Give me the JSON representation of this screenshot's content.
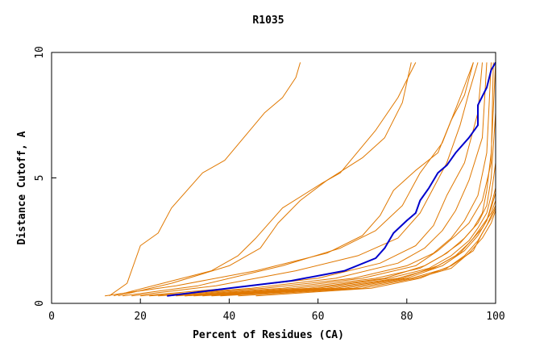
{
  "chart_data": {
    "type": "line",
    "title": "R1035",
    "xlabel": "Percent of Residues (CA)",
    "ylabel": "Distance Cutoff, A",
    "xlim": [
      0,
      100
    ],
    "ylim": [
      0,
      10
    ],
    "x_ticks": [
      "0",
      "20",
      "40",
      "60",
      "80",
      "100"
    ],
    "y_ticks": [
      "0",
      "5",
      "10"
    ],
    "grid": false,
    "legend": "none",
    "colors": {
      "highlight": "#0000cc",
      "others": "#e07800",
      "axis": "#000000"
    },
    "series": [
      {
        "values": [
          [
            13,
            0.3
          ],
          [
            17,
            0.8
          ],
          [
            20,
            2.3
          ],
          [
            24,
            2.8
          ],
          [
            27,
            3.8
          ],
          [
            34,
            5.2
          ],
          [
            39,
            5.7
          ],
          [
            48,
            7.6
          ],
          [
            52,
            8.2
          ],
          [
            55,
            9.0
          ],
          [
            56,
            9.6
          ]
        ]
      },
      {
        "values": [
          [
            14,
            0.3
          ],
          [
            25,
            0.8
          ],
          [
            36,
            1.3
          ],
          [
            42,
            1.9
          ],
          [
            46,
            2.6
          ],
          [
            52,
            3.8
          ],
          [
            61,
            4.8
          ],
          [
            65,
            5.2
          ],
          [
            73,
            6.9
          ],
          [
            78,
            8.2
          ],
          [
            82,
            9.6
          ]
        ]
      },
      {
        "values": [
          [
            15,
            0.3
          ],
          [
            27,
            0.8
          ],
          [
            40,
            1.5
          ],
          [
            47,
            2.2
          ],
          [
            51,
            3.2
          ],
          [
            56,
            4.1
          ],
          [
            62,
            4.9
          ],
          [
            70,
            5.8
          ],
          [
            75,
            6.6
          ],
          [
            79,
            8.0
          ],
          [
            81,
            9.6
          ]
        ]
      },
      {
        "values": [
          [
            12,
            0.3
          ],
          [
            28,
            0.7
          ],
          [
            46,
            1.3
          ],
          [
            62,
            2.0
          ],
          [
            70,
            2.7
          ],
          [
            74,
            3.5
          ],
          [
            77,
            4.5
          ],
          [
            82,
            5.3
          ],
          [
            87,
            6.0
          ],
          [
            90,
            7.3
          ],
          [
            93,
            8.3
          ],
          [
            95,
            9.6
          ]
        ]
      },
      {
        "values": [
          [
            16,
            0.3
          ],
          [
            33,
            0.7
          ],
          [
            52,
            1.5
          ],
          [
            65,
            2.2
          ],
          [
            73,
            2.9
          ],
          [
            79,
            3.9
          ],
          [
            83,
            5.2
          ],
          [
            88,
            6.4
          ],
          [
            92,
            8.2
          ],
          [
            95,
            9.6
          ]
        ]
      },
      {
        "values": [
          [
            18,
            0.3
          ],
          [
            37,
            0.7
          ],
          [
            55,
            1.3
          ],
          [
            69,
            1.9
          ],
          [
            78,
            2.6
          ],
          [
            83,
            3.6
          ],
          [
            86,
            4.6
          ],
          [
            89,
            5.6
          ],
          [
            92,
            7.1
          ],
          [
            94,
            8.4
          ],
          [
            96,
            9.6
          ]
        ]
      },
      {
        "values": [
          [
            20,
            0.3
          ],
          [
            40,
            0.6
          ],
          [
            60,
            1.0
          ],
          [
            74,
            1.6
          ],
          [
            82,
            2.3
          ],
          [
            86,
            3.1
          ],
          [
            89,
            4.3
          ],
          [
            93,
            5.6
          ],
          [
            96,
            7.6
          ],
          [
            97,
            9.6
          ]
        ]
      },
      {
        "values": [
          [
            22,
            0.3
          ],
          [
            45,
            0.6
          ],
          [
            64,
            1.0
          ],
          [
            78,
            1.6
          ],
          [
            84,
            2.2
          ],
          [
            88,
            2.9
          ],
          [
            91,
            3.7
          ],
          [
            94,
            4.9
          ],
          [
            97,
            6.6
          ],
          [
            98,
            9.6
          ]
        ]
      },
      {
        "values": [
          [
            24,
            0.3
          ],
          [
            48,
            0.6
          ],
          [
            68,
            1.0
          ],
          [
            80,
            1.5
          ],
          [
            86,
            2.0
          ],
          [
            90,
            2.6
          ],
          [
            93,
            3.3
          ],
          [
            96,
            4.3
          ],
          [
            98,
            6.0
          ],
          [
            99,
            9.6
          ]
        ]
      },
      {
        "values": [
          [
            26,
            0.3
          ],
          [
            52,
            0.6
          ],
          [
            70,
            1.0
          ],
          [
            82,
            1.5
          ],
          [
            87,
            2.1
          ],
          [
            91,
            2.7
          ],
          [
            94,
            3.2
          ],
          [
            97,
            4.1
          ],
          [
            99,
            5.6
          ],
          [
            99.5,
            9.6
          ]
        ]
      },
      {
        "values": [
          [
            28,
            0.3
          ],
          [
            55,
            0.6
          ],
          [
            73,
            1.0
          ],
          [
            83,
            1.4
          ],
          [
            88,
            1.9
          ],
          [
            92,
            2.4
          ],
          [
            95,
            3.0
          ],
          [
            97,
            3.6
          ],
          [
            98,
            4.5
          ],
          [
            99,
            6.0
          ],
          [
            100,
            9.6
          ]
        ]
      },
      {
        "values": [
          [
            30,
            0.3
          ],
          [
            58,
            0.6
          ],
          [
            75,
            1.0
          ],
          [
            84,
            1.5
          ],
          [
            89,
            2.0
          ],
          [
            93,
            2.6
          ],
          [
            96,
            3.2
          ],
          [
            98,
            3.9
          ],
          [
            99,
            5.0
          ],
          [
            100,
            7.6
          ]
        ]
      },
      {
        "values": [
          [
            30,
            0.3
          ],
          [
            60,
            0.6
          ],
          [
            76,
            1.0
          ],
          [
            85,
            1.4
          ],
          [
            90,
            1.9
          ],
          [
            94,
            2.5
          ],
          [
            96,
            3.0
          ],
          [
            98,
            3.6
          ],
          [
            99,
            4.3
          ],
          [
            100,
            5.6
          ]
        ]
      },
      {
        "values": [
          [
            32,
            0.3
          ],
          [
            62,
            0.6
          ],
          [
            78,
            1.0
          ],
          [
            86,
            1.4
          ],
          [
            91,
            1.9
          ],
          [
            94,
            2.4
          ],
          [
            97,
            3.0
          ],
          [
            98,
            3.3
          ],
          [
            99,
            3.9
          ],
          [
            100,
            4.6
          ]
        ]
      },
      {
        "values": [
          [
            34,
            0.3
          ],
          [
            64,
            0.6
          ],
          [
            79,
            1.0
          ],
          [
            87,
            1.5
          ],
          [
            92,
            2.0
          ],
          [
            95,
            2.6
          ],
          [
            97,
            3.1
          ],
          [
            99,
            3.6
          ],
          [
            100,
            4.1
          ]
        ]
      },
      {
        "values": [
          [
            36,
            0.3
          ],
          [
            66,
            0.6
          ],
          [
            80,
            1.0
          ],
          [
            88,
            1.5
          ],
          [
            93,
            2.1
          ],
          [
            96,
            2.7
          ],
          [
            98,
            3.3
          ],
          [
            99,
            3.8
          ],
          [
            100,
            4.4
          ]
        ]
      },
      {
        "values": [
          [
            38,
            0.3
          ],
          [
            68,
            0.6
          ],
          [
            81,
            1.0
          ],
          [
            89,
            1.4
          ],
          [
            93,
            1.9
          ],
          [
            96,
            2.5
          ],
          [
            98,
            3.1
          ],
          [
            99,
            3.5
          ],
          [
            100,
            3.9
          ]
        ]
      },
      {
        "values": [
          [
            42,
            0.3
          ],
          [
            70,
            0.6
          ],
          [
            82,
            1.0
          ],
          [
            90,
            1.4
          ],
          [
            94,
            2.0
          ],
          [
            97,
            2.6
          ],
          [
            99,
            3.2
          ],
          [
            100,
            3.7
          ]
        ]
      },
      {
        "values": [
          [
            46,
            0.3
          ],
          [
            72,
            0.6
          ],
          [
            83,
            1.0
          ],
          [
            90,
            1.5
          ],
          [
            95,
            2.1
          ],
          [
            97,
            2.8
          ],
          [
            99,
            3.4
          ],
          [
            100,
            3.8
          ]
        ]
      },
      {
        "values": [
          [
            26,
            0.3
          ],
          [
            40,
            0.6
          ],
          [
            54,
            0.9
          ],
          [
            66,
            1.3
          ],
          [
            73,
            1.8
          ],
          [
            75,
            2.2
          ],
          [
            77,
            2.8
          ],
          [
            80,
            3.3
          ],
          [
            82,
            3.6
          ],
          [
            83,
            4.1
          ],
          [
            85,
            4.6
          ],
          [
            87,
            5.2
          ],
          [
            89,
            5.5
          ],
          [
            91,
            6.0
          ],
          [
            94,
            6.6
          ],
          [
            96,
            7.1
          ],
          [
            96,
            7.9
          ],
          [
            98,
            8.6
          ],
          [
            99,
            9.3
          ],
          [
            100,
            9.6
          ]
        ],
        "highlight": true
      }
    ]
  }
}
